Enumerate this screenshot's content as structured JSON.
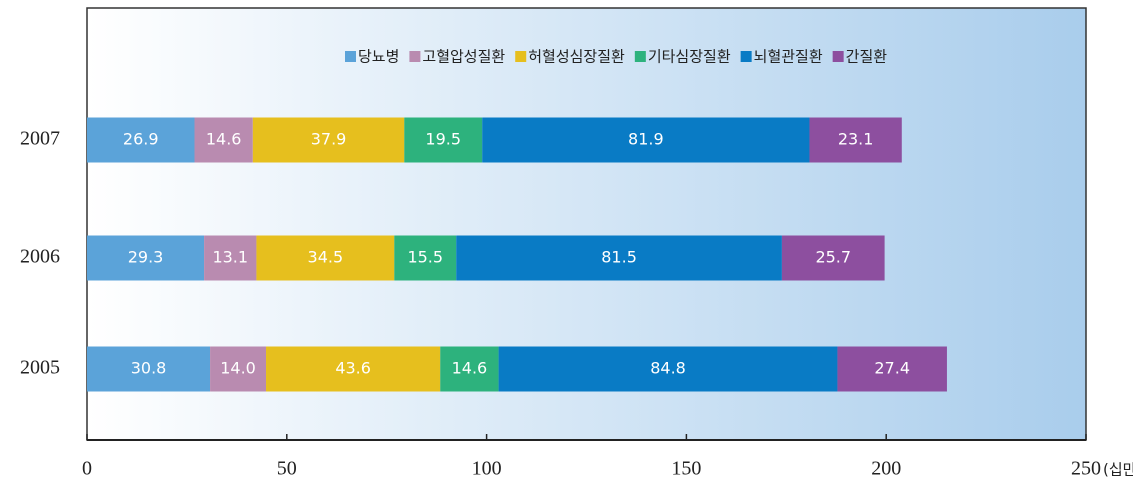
{
  "chart_data": {
    "type": "stacked_barh",
    "categories": [
      "2007",
      "2006",
      "2005"
    ],
    "series": [
      {
        "name": "당뇨병",
        "color": "#5ba3d9",
        "values": [
          26.9,
          29.3,
          30.8
        ],
        "value_labels": [
          "26.9",
          "29.3",
          "30.8"
        ]
      },
      {
        "name": "고혈압성질환",
        "color": "#b98bb0",
        "values": [
          14.6,
          13.1,
          14.0
        ],
        "value_labels": [
          "14.6",
          "13.1",
          "14.0"
        ]
      },
      {
        "name": "허혈성심장질환",
        "color": "#e6bf1e",
        "values": [
          37.9,
          34.5,
          43.6
        ],
        "value_labels": [
          "37.9",
          "34.5",
          "43.6"
        ]
      },
      {
        "name": "기타심장질환",
        "color": "#2db27d",
        "values": [
          19.5,
          15.5,
          14.6
        ],
        "value_labels": [
          "19.5",
          "15.5",
          "14.6"
        ]
      },
      {
        "name": "뇌혈관질환",
        "color": "#097bc5",
        "values": [
          81.9,
          81.5,
          84.8
        ],
        "value_labels": [
          "81.9",
          "81.5",
          "84.8"
        ]
      },
      {
        "name": "간질환",
        "color": "#8d4f9f",
        "values": [
          23.1,
          25.7,
          27.4
        ],
        "value_labels": [
          "23.1",
          "25.7",
          "27.4"
        ]
      }
    ],
    "x_label": "(십만명당)",
    "xlim": [
      0,
      250
    ],
    "xticks": [
      0,
      50,
      100,
      150,
      200,
      250
    ]
  }
}
